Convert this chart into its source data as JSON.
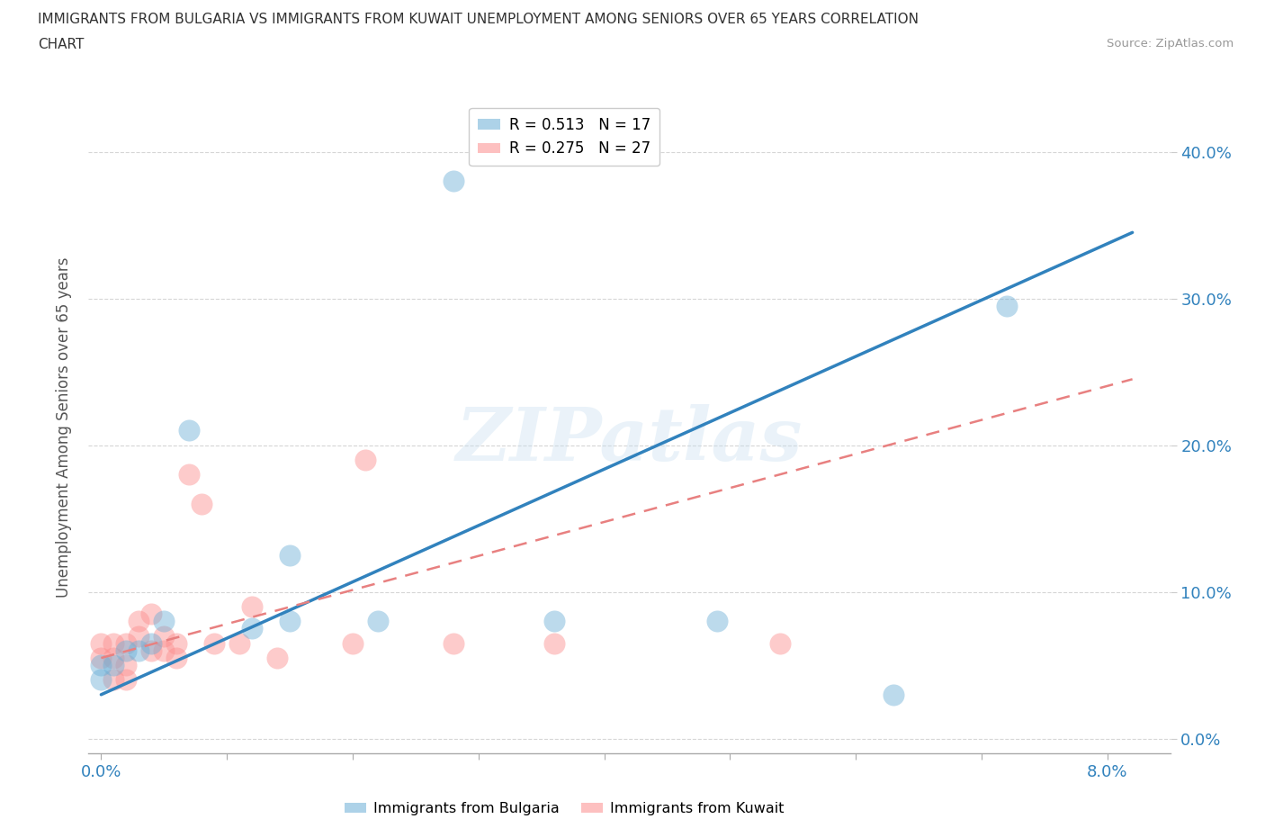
{
  "title_line1": "IMMIGRANTS FROM BULGARIA VS IMMIGRANTS FROM KUWAIT UNEMPLOYMENT AMONG SENIORS OVER 65 YEARS CORRELATION",
  "title_line2": "CHART",
  "source_text": "Source: ZipAtlas.com",
  "ylabel": "Unemployment Among Seniors over 65 years",
  "bg_color": "#ffffff",
  "grid_color": "#cccccc",
  "watermark": "ZIPatlas",
  "bulgaria_color": "#6baed6",
  "kuwait_color": "#fc8d8d",
  "bulgaria_R": 0.513,
  "bulgaria_N": 17,
  "kuwait_R": 0.275,
  "kuwait_N": 27,
  "xlim": [
    -0.001,
    0.085
  ],
  "ylim": [
    -0.01,
    0.435
  ],
  "xticks": [
    0.0,
    0.01,
    0.02,
    0.03,
    0.04,
    0.05,
    0.06,
    0.07,
    0.08
  ],
  "yticks": [
    0.0,
    0.1,
    0.2,
    0.3,
    0.4
  ],
  "bulgaria_x": [
    0.0,
    0.0,
    0.001,
    0.002,
    0.003,
    0.004,
    0.005,
    0.007,
    0.012,
    0.015,
    0.015,
    0.022,
    0.028,
    0.036,
    0.049,
    0.063,
    0.072
  ],
  "bulgaria_y": [
    0.04,
    0.05,
    0.05,
    0.06,
    0.06,
    0.065,
    0.08,
    0.21,
    0.075,
    0.08,
    0.125,
    0.08,
    0.38,
    0.08,
    0.08,
    0.03,
    0.295
  ],
  "kuwait_x": [
    0.0,
    0.0,
    0.001,
    0.001,
    0.001,
    0.002,
    0.002,
    0.002,
    0.003,
    0.003,
    0.004,
    0.004,
    0.005,
    0.005,
    0.006,
    0.006,
    0.007,
    0.008,
    0.009,
    0.011,
    0.012,
    0.014,
    0.02,
    0.021,
    0.028,
    0.036,
    0.054
  ],
  "kuwait_y": [
    0.055,
    0.065,
    0.04,
    0.055,
    0.065,
    0.04,
    0.05,
    0.065,
    0.07,
    0.08,
    0.085,
    0.06,
    0.06,
    0.07,
    0.055,
    0.065,
    0.18,
    0.16,
    0.065,
    0.065,
    0.09,
    0.055,
    0.065,
    0.19,
    0.065,
    0.065,
    0.065
  ],
  "bulgaria_line_x": [
    0.0,
    0.082
  ],
  "bulgaria_line_y": [
    0.03,
    0.345
  ],
  "kuwait_line_x": [
    0.0,
    0.082
  ],
  "kuwait_line_y": [
    0.055,
    0.245
  ]
}
